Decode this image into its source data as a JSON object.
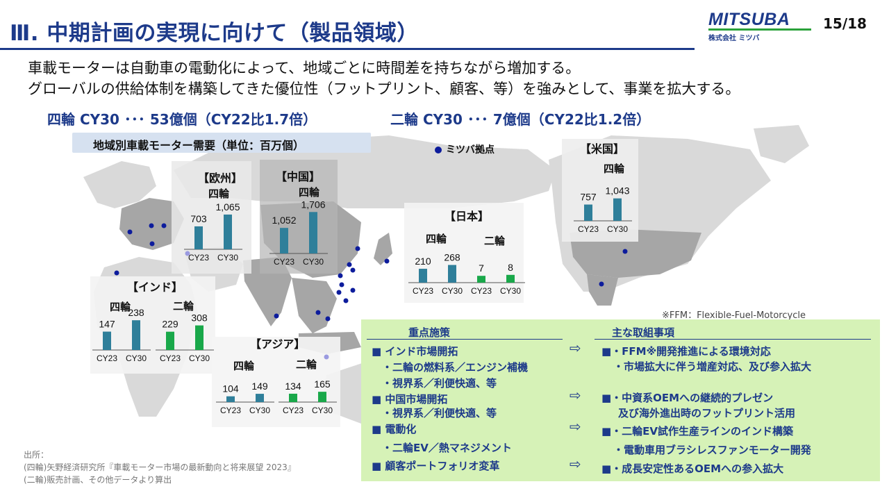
{
  "header": {
    "title": "Ⅲ. 中期計画の実現に向けて（製品領域）",
    "logo": "MITSUBA",
    "logo_sub": "株式会社 ミツバ",
    "page": "15/18"
  },
  "lead": {
    "line1": "車載モーターは自動車の電動化によって、地域ごとに時間差を持ちながら増加する。",
    "line2": "グローバルの供給体制を構築してきた優位性（フットプリント、顧客、等）を強みとして、事業を拡大する。"
  },
  "headlines": {
    "four_wheel": "四輪 CY30 ･･･ 53億個（CY22比1.7倍）",
    "two_wheel": "二輪 CY30 ･･･ 7億個（CY22比1.2倍）"
  },
  "legend": {
    "demand": "地域別車載モーター需要（単位：百万個）",
    "bases": "ミツバ拠点"
  },
  "colors": {
    "four_wheel": "#2f7f9a",
    "two_wheel": "#19a84a",
    "accent": "#1d3a8a",
    "base_dot": "#0d1c9c"
  },
  "chart_data": [
    {
      "type": "bar",
      "region": "【欧州】",
      "series": [
        {
          "name": "四輪",
          "categories": [
            "CY23",
            "CY30"
          ],
          "values": [
            703,
            1065
          ]
        }
      ]
    },
    {
      "type": "bar",
      "region": "【中国】",
      "series": [
        {
          "name": "四輪",
          "categories": [
            "CY23",
            "CY30"
          ],
          "values": [
            1052,
            1706
          ]
        }
      ]
    },
    {
      "type": "bar",
      "region": "【日本】",
      "series": [
        {
          "name": "四輪",
          "categories": [
            "CY23",
            "CY30"
          ],
          "values": [
            210,
            268
          ]
        },
        {
          "name": "二輪",
          "categories": [
            "CY23",
            "CY30"
          ],
          "values": [
            7,
            8
          ]
        }
      ]
    },
    {
      "type": "bar",
      "region": "【米国】",
      "series": [
        {
          "name": "四輪",
          "categories": [
            "CY23",
            "CY30"
          ],
          "values": [
            757,
            1043
          ]
        }
      ]
    },
    {
      "type": "bar",
      "region": "【インド】",
      "series": [
        {
          "name": "四輪",
          "categories": [
            "CY23",
            "CY30"
          ],
          "values": [
            147,
            238
          ]
        },
        {
          "name": "二輪",
          "categories": [
            "CY23",
            "CY30"
          ],
          "values": [
            229,
            308
          ]
        }
      ]
    },
    {
      "type": "bar",
      "region": "【アジア】",
      "series": [
        {
          "name": "四輪",
          "categories": [
            "CY23",
            "CY30"
          ],
          "values": [
            104,
            149
          ]
        },
        {
          "name": "二輪",
          "categories": [
            "CY23",
            "CY30"
          ],
          "values": [
            134,
            165
          ]
        }
      ]
    }
  ],
  "ffm_note": "※FFM：Flexible-Fuel-Motorcycle",
  "measures": {
    "header_left": "重点施策",
    "header_right": "主な取組事項",
    "left": [
      "■ インド市場開拓",
      "・二輪の燃料系／エンジン補機",
      "・視界系／利便快適、等",
      "■ 中国市場開拓",
      "・視界系／利便快適、等",
      "■ 電動化",
      "・二輪EV／熱マネジメント",
      "■ 顧客ポートフォリオ変革"
    ],
    "right": [
      "■・FFM※開発推進による環境対応",
      "・市場拡大に伴う増産対応、及び参入拡大",
      "■・中資系OEMへの継続的プレゼン",
      "及び海外進出時のフットプリント活用",
      "■・二輪EV試作生産ラインのインド構築",
      "・電動車用ブラシレスファンモーター開発",
      "■・成長安定性あるOEMへの参入拡大"
    ],
    "arrow": "⇨"
  },
  "source": {
    "label": "出所：",
    "line1": "(四輪)矢野経済研究所『車載モーター市場の最新動向と将来展望 2023』",
    "line2": "(二輪)販売計画、その他データより算出"
  }
}
